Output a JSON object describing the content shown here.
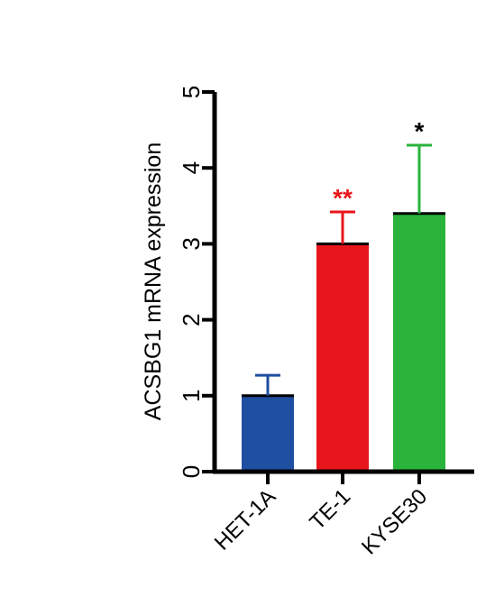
{
  "chart_data": {
    "type": "bar",
    "title": "",
    "xlabel": "",
    "ylabel": "ACSBG1 mRNA expression",
    "ylim": [
      0,
      5
    ],
    "yticks": [
      "0",
      "1",
      "2",
      "3",
      "4",
      "5"
    ],
    "categories": [
      "HET-1A",
      "TE-1",
      "KYSE30"
    ],
    "values": [
      1.0,
      3.0,
      3.4
    ],
    "error_upper": [
      0.27,
      0.42,
      0.9
    ],
    "significance": [
      "",
      "**",
      "*"
    ],
    "colors": [
      "#1f4fa0",
      "#e8161c",
      "#2ab43c"
    ],
    "grid": false,
    "legend": "none"
  }
}
